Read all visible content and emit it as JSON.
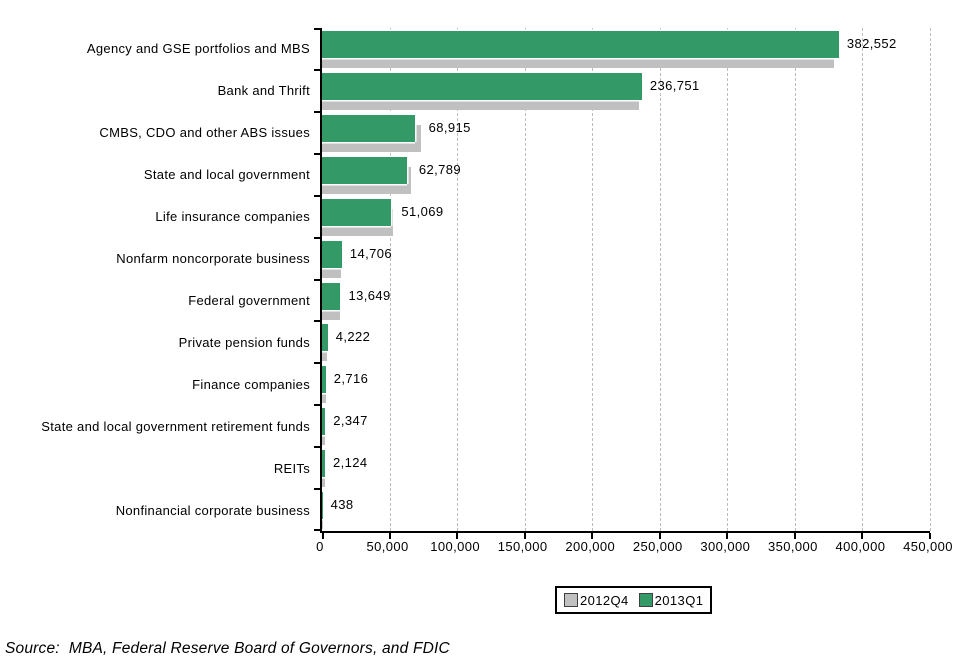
{
  "source_note": "Source:  MBA, Federal Reserve Board of Governors, and FDIC",
  "chart_data": {
    "type": "bar",
    "orientation": "horizontal",
    "title": "",
    "xlabel": "",
    "ylabel": "",
    "categories": [
      "Agency and GSE portfolios and MBS",
      "Bank and Thrift",
      "CMBS, CDO and other ABS issues",
      "State and local government",
      "Life insurance companies",
      "Nonfarm noncorporate business",
      "Federal government",
      "Private pension funds",
      "Finance companies",
      "State and local government retirement funds",
      "REITs",
      "Nonfinancial corporate business"
    ],
    "series": [
      {
        "name": "2012Q4",
        "color": "#C0C0C0",
        "values": [
          379000,
          234700,
          73000,
          65800,
          52800,
          14300,
          13600,
          4000,
          2800,
          2400,
          2200,
          450
        ]
      },
      {
        "name": "2013Q1",
        "color": "#339966",
        "values": [
          382552,
          236751,
          68915,
          62789,
          51069,
          14706,
          13649,
          4222,
          2716,
          2347,
          2124,
          438
        ]
      }
    ],
    "data_labels": [
      "382,552",
      "236,751",
      "68,915",
      "62,789",
      "51,069",
      "14,706",
      "13,649",
      "4,222",
      "2,716",
      "2,347",
      "2,124",
      "438"
    ],
    "data_label_series": "2013Q1",
    "xlim": [
      0,
      450000
    ],
    "x_tick_interval": 50000,
    "x_tick_labels": [
      "0",
      "50,000",
      "100,000",
      "150,000",
      "200,000",
      "250,000",
      "300,000",
      "350,000",
      "400,000",
      "450,000"
    ],
    "grid": "vertical-dashed",
    "gridline_color": "#bdbdbd",
    "legend_position": "bottom-center"
  }
}
